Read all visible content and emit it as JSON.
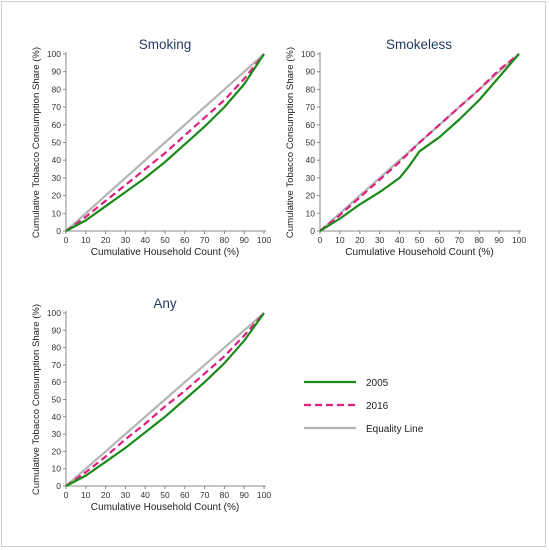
{
  "colors": {
    "c2005": "#1a8a1a",
    "c2016": "#e0207e",
    "equality": "#b4b4b4",
    "axis": "#888888",
    "title": "#1f3a5f"
  },
  "legend": [
    {
      "label": "2005",
      "color": "#1a8a1a",
      "style": "solid"
    },
    {
      "label": "2016",
      "color": "#e0207e",
      "style": "dashed"
    },
    {
      "label": "Equality Line",
      "color": "#b4b4b4",
      "style": "solid"
    }
  ],
  "chart_data": [
    {
      "type": "line",
      "title": "Smoking",
      "xlabel": "Cumulative Household Count (%)",
      "ylabel": "Cumulative Tobacco Consumption Share (%)",
      "xlim": [
        0,
        100
      ],
      "ylim": [
        0,
        100
      ],
      "xticks": [
        "0",
        "10",
        "20",
        "30",
        "40",
        "50",
        "60",
        "70",
        "80",
        "90",
        "100"
      ],
      "yticks": [
        "0",
        "10",
        "20",
        "30",
        "40",
        "50",
        "60",
        "70",
        "80",
        "90",
        "100"
      ],
      "series": [
        {
          "name": "Equality Line",
          "x": [
            0,
            10,
            20,
            30,
            40,
            50,
            60,
            70,
            80,
            90,
            100
          ],
          "y": [
            0,
            10,
            20,
            30,
            40,
            50,
            60,
            70,
            80,
            90,
            100
          ]
        },
        {
          "name": "2016",
          "x": [
            0,
            10,
            20,
            30,
            40,
            50,
            60,
            70,
            80,
            90,
            100
          ],
          "y": [
            0,
            8,
            17,
            26,
            35,
            44,
            54,
            64,
            74,
            86,
            100
          ]
        },
        {
          "name": "2005",
          "x": [
            0,
            10,
            20,
            30,
            40,
            50,
            60,
            70,
            80,
            90,
            100
          ],
          "y": [
            0,
            6,
            14,
            22,
            30,
            39,
            49,
            59,
            70,
            83,
            100
          ]
        }
      ]
    },
    {
      "type": "line",
      "title": "Smokeless",
      "xlabel": "Cumulative Household Count (%)",
      "ylabel": "Cumulative Tobacco Consumption Share (%)",
      "xlim": [
        0,
        100
      ],
      "ylim": [
        0,
        100
      ],
      "xticks": [
        "0",
        "10",
        "20",
        "30",
        "40",
        "50",
        "60",
        "70",
        "80",
        "90",
        "100"
      ],
      "yticks": [
        "0",
        "10",
        "20",
        "30",
        "40",
        "50",
        "60",
        "70",
        "80",
        "90",
        "100"
      ],
      "series": [
        {
          "name": "Equality Line",
          "x": [
            0,
            10,
            20,
            30,
            40,
            50,
            60,
            70,
            80,
            90,
            100
          ],
          "y": [
            0,
            10,
            20,
            30,
            40,
            50,
            60,
            70,
            80,
            90,
            100
          ]
        },
        {
          "name": "2016",
          "x": [
            0,
            10,
            20,
            30,
            40,
            50,
            60,
            70,
            80,
            90,
            100
          ],
          "y": [
            0,
            9,
            19,
            29,
            39,
            50,
            60,
            70,
            80,
            91,
            100
          ]
        },
        {
          "name": "2005",
          "x": [
            0,
            10,
            20,
            30,
            40,
            45,
            50,
            60,
            70,
            80,
            90,
            100
          ],
          "y": [
            0,
            7,
            15,
            22,
            30,
            37,
            45,
            53,
            63,
            74,
            87,
            100
          ]
        }
      ]
    },
    {
      "type": "line",
      "title": "Any",
      "xlabel": "Cumulative Household Count (%)",
      "ylabel": "Cumulative Tobacco Consumption Share (%)",
      "xlim": [
        0,
        100
      ],
      "ylim": [
        0,
        100
      ],
      "xticks": [
        "0",
        "10",
        "20",
        "30",
        "40",
        "50",
        "60",
        "70",
        "80",
        "90",
        "100"
      ],
      "yticks": [
        "0",
        "10",
        "20",
        "30",
        "40",
        "50",
        "60",
        "70",
        "80",
        "90",
        "100"
      ],
      "series": [
        {
          "name": "Equality Line",
          "x": [
            0,
            10,
            20,
            30,
            40,
            50,
            60,
            70,
            80,
            90,
            100
          ],
          "y": [
            0,
            10,
            20,
            30,
            40,
            50,
            60,
            70,
            80,
            90,
            100
          ]
        },
        {
          "name": "2016",
          "x": [
            0,
            10,
            20,
            30,
            40,
            50,
            60,
            70,
            80,
            90,
            100
          ],
          "y": [
            0,
            8,
            17,
            27,
            36,
            46,
            55,
            65,
            75,
            87,
            100
          ]
        },
        {
          "name": "2005",
          "x": [
            0,
            10,
            20,
            30,
            40,
            50,
            60,
            70,
            80,
            90,
            100
          ],
          "y": [
            0,
            6,
            14,
            22,
            31,
            40,
            50,
            60,
            71,
            84,
            100
          ]
        }
      ]
    }
  ]
}
